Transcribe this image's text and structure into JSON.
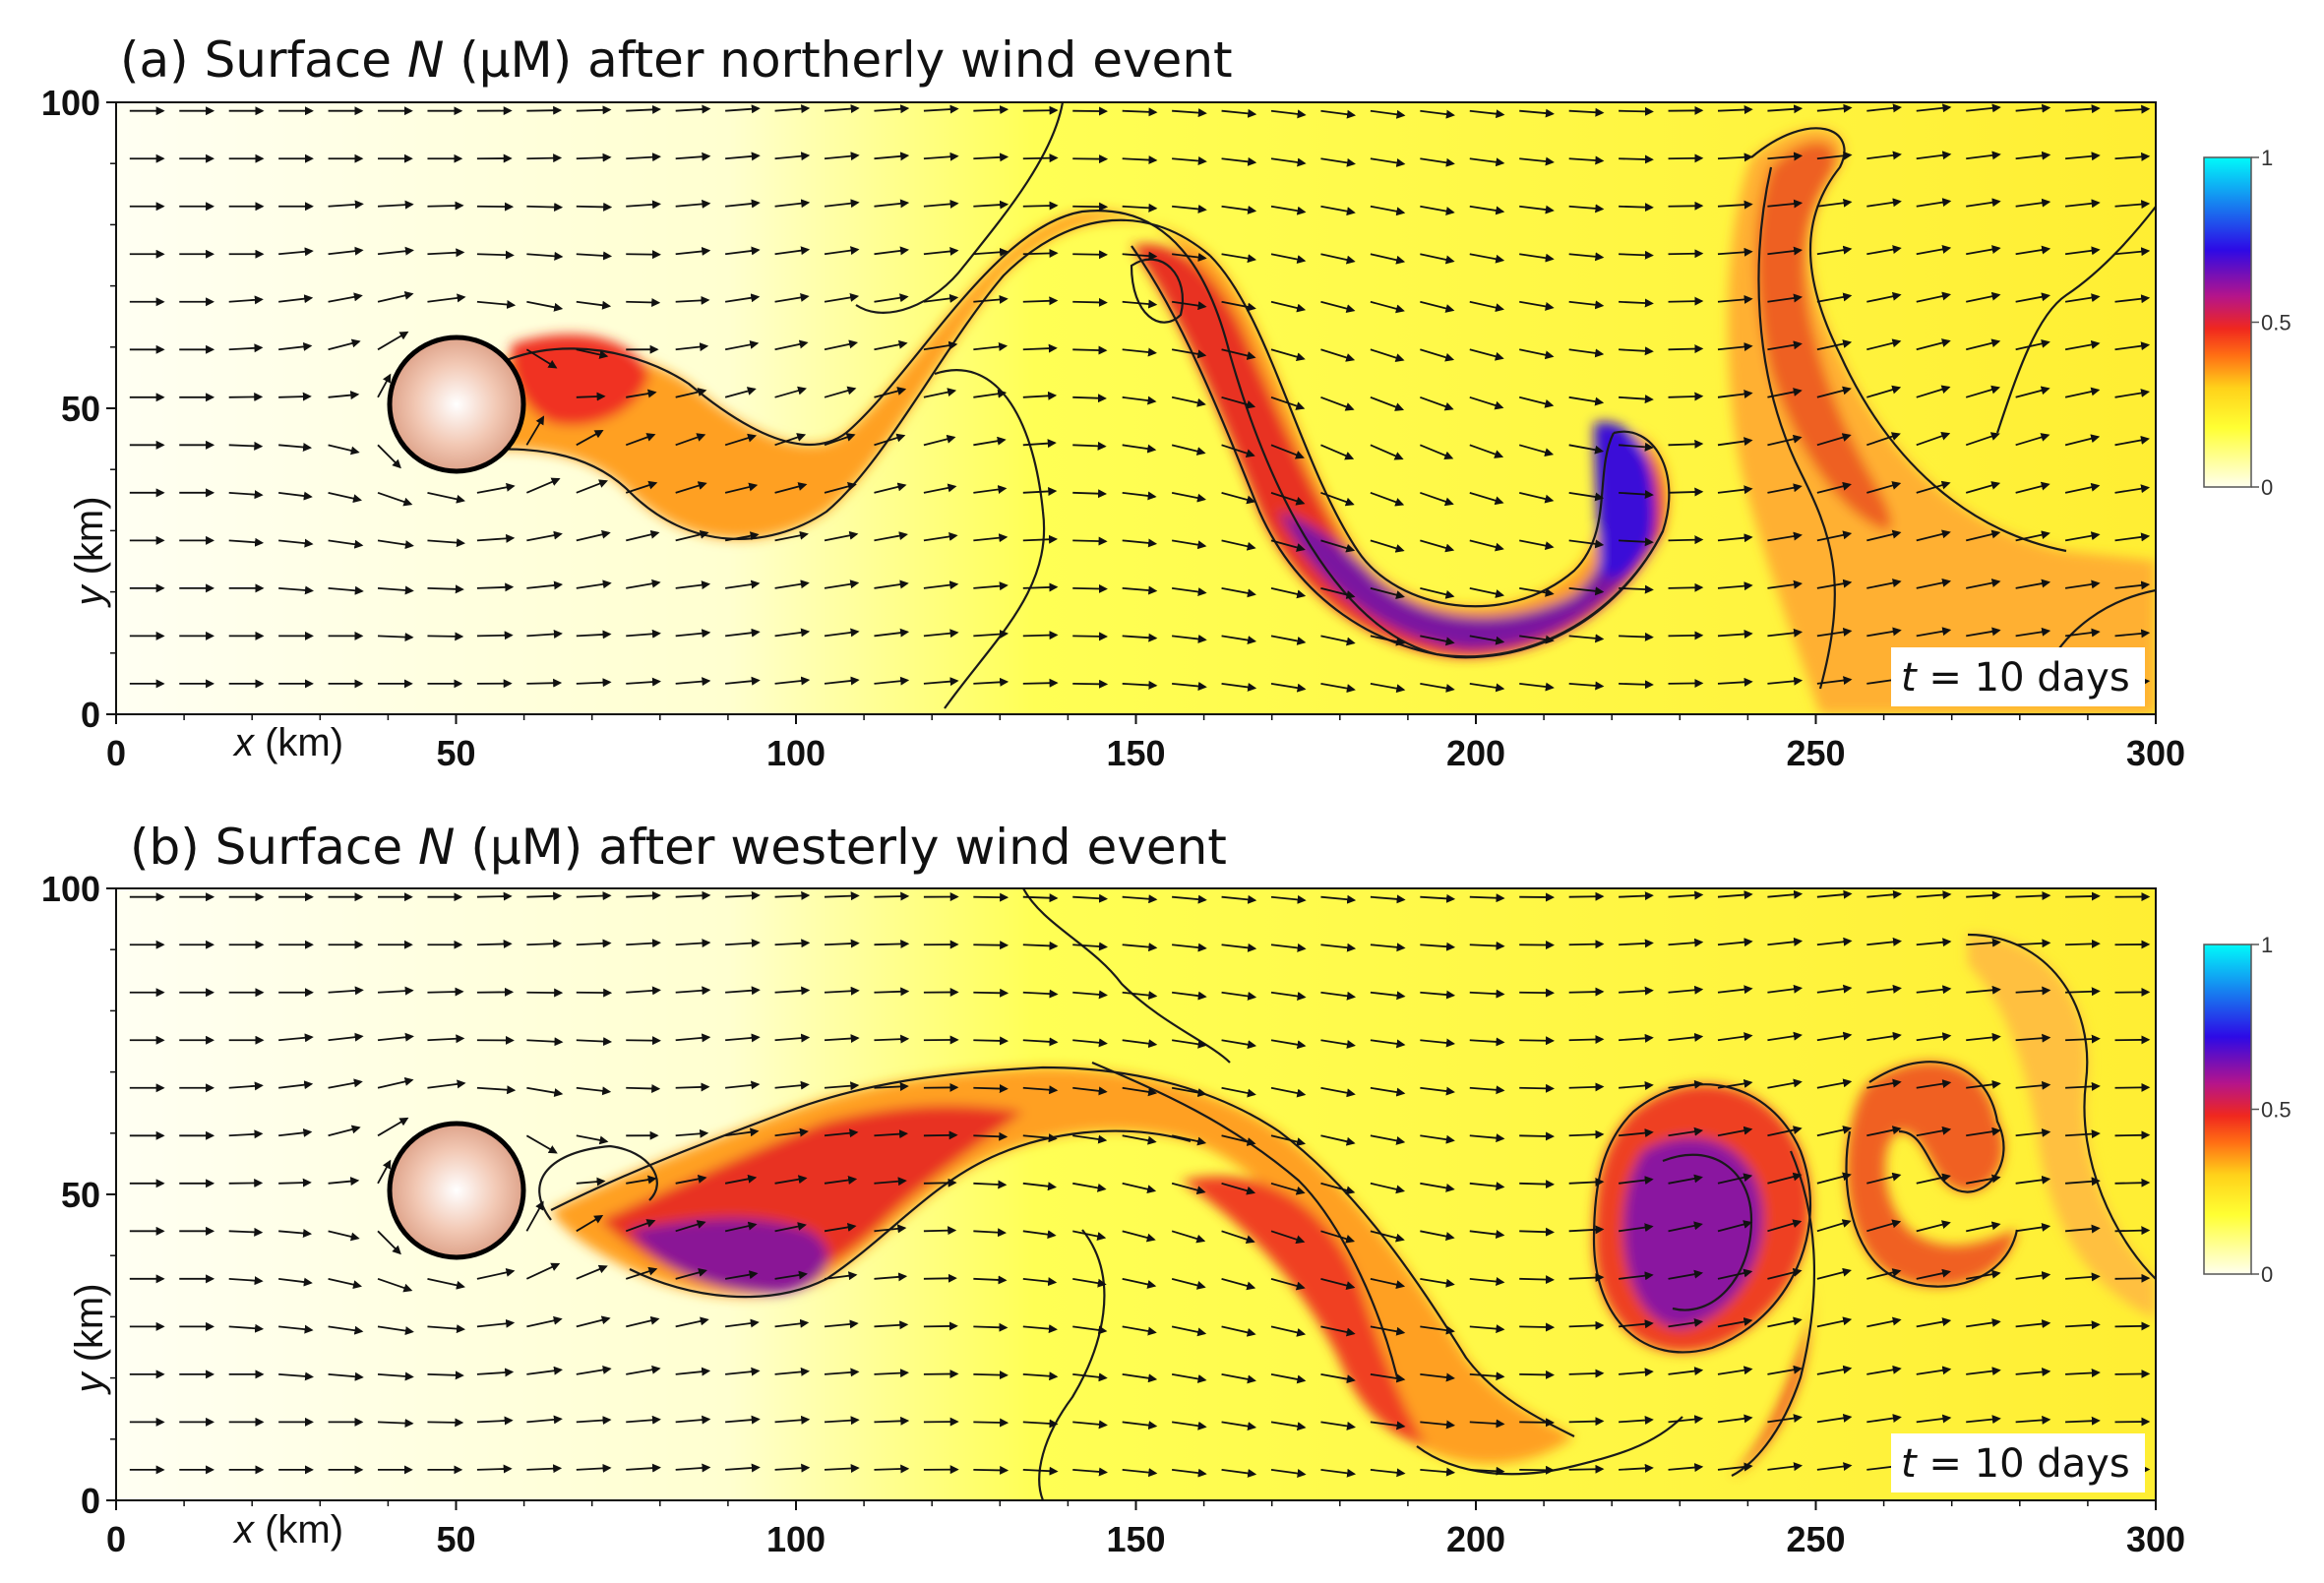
{
  "chart_data": [
    {
      "type": "heatmap",
      "panel_label": "(a)",
      "title_prefix": "Surface ",
      "title_var": "N",
      "title_suffix": " (μM) after northerly wind event",
      "xlabel_var": "x",
      "xlabel_unit": " (km)",
      "ylabel_var": "y",
      "ylabel_unit": " (km)",
      "xlim": [
        0,
        300
      ],
      "ylim": [
        0,
        100
      ],
      "x_ticks": [
        "0",
        "50",
        "100",
        "150",
        "200",
        "250",
        "300"
      ],
      "y_ticks": [
        "0",
        "50",
        "100"
      ],
      "colorbar": {
        "ticks": [
          "0",
          "0.5",
          "1"
        ],
        "range": [
          0,
          1
        ],
        "colors": [
          "#ffffee",
          "#ffff33",
          "#ffd21a",
          "#ff6e14",
          "#f0281e",
          "#b4148c",
          "#2d0ae6",
          "#00fafa"
        ]
      },
      "time_label_var": "t",
      "time_label_text": " = 10 days",
      "island": {
        "x": 50,
        "y": 50,
        "radius_km": 10
      },
      "plume_path": [
        [
          60,
          58
        ],
        [
          80,
          48
        ],
        [
          100,
          36
        ],
        [
          118,
          48
        ],
        [
          140,
          72
        ],
        [
          160,
          64
        ],
        [
          175,
          40
        ],
        [
          192,
          14
        ],
        [
          215,
          16
        ],
        [
          225,
          36
        ],
        [
          218,
          46
        ]
      ],
      "max_region": {
        "x": 205,
        "y": 30
      },
      "secondary_feature": [
        [
          248,
          55
        ],
        [
          255,
          75
        ],
        [
          254,
          95
        ],
        [
          265,
          60
        ],
        [
          285,
          20
        ]
      ]
    },
    {
      "type": "heatmap",
      "panel_label": "(b)",
      "title_prefix": "Surface ",
      "title_var": "N",
      "title_suffix": " (μM) after westerly wind event",
      "xlabel_var": "x",
      "xlabel_unit": " (km)",
      "ylabel_var": "y",
      "ylabel_unit": " (km)",
      "xlim": [
        0,
        300
      ],
      "ylim": [
        0,
        100
      ],
      "x_ticks": [
        "0",
        "50",
        "100",
        "150",
        "200",
        "250",
        "300"
      ],
      "y_ticks": [
        "0",
        "50",
        "100"
      ],
      "colorbar": {
        "ticks": [
          "0",
          "0.5",
          "1"
        ],
        "range": [
          0,
          1
        ],
        "colors": [
          "#ffffee",
          "#ffff33",
          "#ffd21a",
          "#ff6e14",
          "#f0281e",
          "#b4148c",
          "#2d0ae6",
          "#00fafa"
        ]
      },
      "time_label_var": "t",
      "time_label_text": " = 10 days",
      "island": {
        "x": 50,
        "y": 50,
        "radius_km": 10
      },
      "plume_path": [
        [
          75,
          47
        ],
        [
          95,
          38
        ],
        [
          110,
          40
        ],
        [
          130,
          55
        ],
        [
          150,
          62
        ],
        [
          170,
          50
        ],
        [
          185,
          30
        ],
        [
          205,
          10
        ]
      ],
      "max_region": {
        "x": 225,
        "y": 38
      },
      "secondary_feature": [
        [
          270,
          52
        ],
        [
          268,
          35
        ],
        [
          285,
          40
        ]
      ]
    }
  ]
}
